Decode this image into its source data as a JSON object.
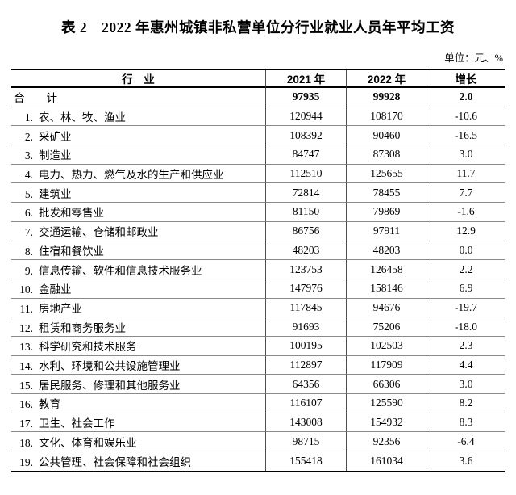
{
  "page": {
    "title": "表 2　2022 年惠州城镇非私营单位分行业就业人员年平均工资",
    "unit_note": "单位：元、%"
  },
  "table": {
    "columns": {
      "industry": "行　业",
      "y2021": "2021 年",
      "y2022": "2022 年",
      "growth": "增长"
    },
    "total_row": {
      "name": "合　　计",
      "y2021": "97935",
      "y2022": "99928",
      "growth": "2.0"
    },
    "rows": [
      {
        "num": "1.",
        "name": "农、林、牧、渔业",
        "y2021": "120944",
        "y2022": "108170",
        "growth": "-10.6"
      },
      {
        "num": "2.",
        "name": "采矿业",
        "y2021": "108392",
        "y2022": "90460",
        "growth": "-16.5"
      },
      {
        "num": "3.",
        "name": "制造业",
        "y2021": "84747",
        "y2022": "87308",
        "growth": "3.0"
      },
      {
        "num": "4.",
        "name": "电力、热力、燃气及水的生产和供应业",
        "y2021": "112510",
        "y2022": "125655",
        "growth": "11.7"
      },
      {
        "num": "5.",
        "name": "建筑业",
        "y2021": "72814",
        "y2022": "78455",
        "growth": "7.7"
      },
      {
        "num": "6.",
        "name": "批发和零售业",
        "y2021": "81150",
        "y2022": "79869",
        "growth": "-1.6"
      },
      {
        "num": "7.",
        "name": "交通运输、仓储和邮政业",
        "y2021": "86756",
        "y2022": "97911",
        "growth": "12.9"
      },
      {
        "num": "8.",
        "name": "住宿和餐饮业",
        "y2021": "48203",
        "y2022": "48203",
        "growth": "0.0"
      },
      {
        "num": "9.",
        "name": "信息传输、软件和信息技术服务业",
        "y2021": "123753",
        "y2022": "126458",
        "growth": "2.2"
      },
      {
        "num": "10.",
        "name": "金融业",
        "y2021": "147976",
        "y2022": "158146",
        "growth": "6.9"
      },
      {
        "num": "11.",
        "name": "房地产业",
        "y2021": "117845",
        "y2022": "94676",
        "growth": "-19.7"
      },
      {
        "num": "12.",
        "name": "租赁和商务服务业",
        "y2021": "91693",
        "y2022": "75206",
        "growth": "-18.0"
      },
      {
        "num": "13.",
        "name": "科学研究和技术服务",
        "y2021": "100195",
        "y2022": "102503",
        "growth": "2.3"
      },
      {
        "num": "14.",
        "name": "水利、环境和公共设施管理业",
        "y2021": "112897",
        "y2022": "117909",
        "growth": "4.4"
      },
      {
        "num": "15.",
        "name": "居民服务、修理和其他服务业",
        "y2021": "64356",
        "y2022": "66306",
        "growth": "3.0"
      },
      {
        "num": "16.",
        "name": "教育",
        "y2021": "116107",
        "y2022": "125590",
        "growth": "8.2"
      },
      {
        "num": "17.",
        "name": "卫生、社会工作",
        "y2021": "143008",
        "y2022": "154932",
        "growth": "8.3"
      },
      {
        "num": "18.",
        "name": "文化、体育和娱乐业",
        "y2021": "98715",
        "y2022": "92356",
        "growth": "-6.4"
      },
      {
        "num": "19.",
        "name": "公共管理、社会保障和社会组织",
        "y2021": "155418",
        "y2022": "161034",
        "growth": "3.6"
      }
    ]
  }
}
